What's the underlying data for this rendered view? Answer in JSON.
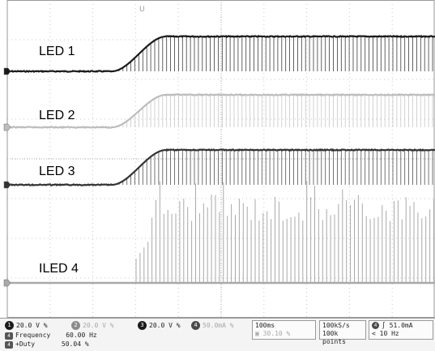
{
  "traces": [
    {
      "label": "LED 1",
      "color": "#1a1a1a",
      "ground_marker": "1"
    },
    {
      "label": "LED 2",
      "color": "#bdbdbd",
      "ground_marker": "2"
    },
    {
      "label": "LED 3",
      "color": "#333333",
      "ground_marker": "3"
    },
    {
      "label": "ILED 4",
      "color": "#a9a9a9",
      "ground_marker": "4"
    }
  ],
  "trigger_marker": "U",
  "status": {
    "channels": [
      {
        "num": "1",
        "scale": "20.0 V",
        "coupling": "%",
        "style": "dark",
        "dim": false
      },
      {
        "num": "2",
        "scale": "20.0 V",
        "coupling": "%",
        "style": "grey",
        "dim": true
      },
      {
        "num": "3",
        "scale": "20.0 V",
        "coupling": "%",
        "style": "dark",
        "dim": false
      },
      {
        "num": "4",
        "scale": "50.0mA",
        "coupling": "%",
        "style": "mid",
        "dim": true
      }
    ],
    "timebase": "100ms",
    "trigger_position": "30.10 %",
    "sample_rate": "100kS/s",
    "record_length": "100k points",
    "trigger_channel": "4",
    "trigger_slope": "∫",
    "trigger_level": "51.0mA",
    "trigger_freq": "< 10 Hz",
    "measurements": [
      {
        "channel": "4",
        "name": "Frequency",
        "value": "60.00 Hz"
      },
      {
        "channel": "4",
        "name": "+Duty",
        "value": "50.04 %"
      }
    ]
  }
}
